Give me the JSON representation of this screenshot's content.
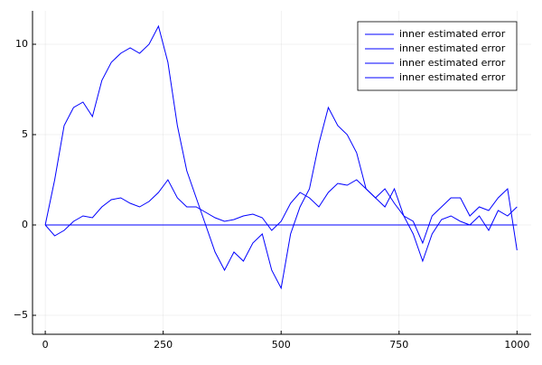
{
  "chart_data": {
    "type": "line",
    "x": [
      0,
      20,
      40,
      60,
      80,
      100,
      120,
      140,
      160,
      180,
      200,
      220,
      240,
      260,
      280,
      300,
      320,
      340,
      360,
      380,
      400,
      420,
      440,
      460,
      480,
      500,
      520,
      540,
      560,
      580,
      600,
      620,
      640,
      660,
      680,
      700,
      720,
      740,
      760,
      780,
      800,
      820,
      840,
      860,
      880,
      900,
      920,
      940,
      960,
      980,
      1000
    ],
    "series": [
      {
        "name": "inner estimated error",
        "color": "#0000ff",
        "values": [
          0,
          2.5,
          5.5,
          6.5,
          6.8,
          6,
          8,
          9,
          9.5,
          9.8,
          9.5,
          10,
          11,
          9,
          5.5,
          3,
          1.5,
          0,
          -1.5,
          -2.5,
          -1.5,
          -2,
          -1,
          -0.5,
          -2.5,
          -3.5,
          -0.5,
          1,
          2,
          4.5,
          6.5,
          5.5,
          5,
          4,
          2,
          1.5,
          1,
          2,
          0.5,
          0.2,
          -1,
          0.5,
          1,
          1.5,
          1.5,
          0.5,
          1,
          0.8,
          1.5,
          2,
          -1.4
        ]
      },
      {
        "name": "inner estimated error",
        "color": "#0000ff",
        "values": [
          0,
          -0.6,
          -0.3,
          0.2,
          0.5,
          0.4,
          1,
          1.4,
          1.5,
          1.2,
          1,
          1.3,
          1.8,
          2.5,
          1.5,
          1,
          1,
          0.7,
          0.4,
          0.2,
          0.3,
          0.5,
          0.6,
          0.4,
          -0.3,
          0.2,
          1.2,
          1.8,
          1.5,
          1,
          1.8,
          2.3,
          2.2,
          2.5,
          2,
          1.5,
          2,
          1.2,
          0.5,
          -0.5,
          -2,
          -0.5,
          0.3,
          0.5,
          0.2,
          0,
          0.5,
          -0.3,
          0.8,
          0.5,
          1
        ]
      },
      {
        "name": "inner estimated error",
        "color": "#0000ff",
        "values": [
          0,
          0,
          0,
          0,
          0,
          0,
          0,
          0,
          0,
          0,
          0,
          0,
          0,
          0,
          0,
          0,
          0,
          0,
          0,
          0,
          0,
          0,
          0,
          0,
          0,
          0,
          0,
          0,
          0,
          0,
          0,
          0,
          0,
          0,
          0,
          0,
          0,
          0,
          0,
          0,
          0,
          0,
          0,
          0,
          0,
          0,
          0,
          0,
          0,
          0,
          0
        ]
      },
      {
        "name": "inner estimated error",
        "color": "#0000ff",
        "values": [
          0,
          0,
          0,
          0,
          0,
          0,
          0,
          0,
          0,
          0,
          0,
          0,
          0,
          0,
          0,
          0,
          0,
          0,
          0,
          0,
          0,
          0,
          0,
          0,
          0,
          0,
          0,
          0,
          0,
          0,
          0,
          0,
          0,
          0,
          0,
          0,
          0,
          0,
          0,
          0,
          0,
          0,
          0,
          0,
          0,
          0,
          0,
          0,
          0,
          0,
          0
        ]
      }
    ],
    "xlim": [
      -27,
      1030
    ],
    "ylim": [
      -6.05,
      11.85
    ],
    "xticks": [
      0,
      250,
      500,
      750,
      1000
    ],
    "yticks": [
      {
        "value": -5,
        "label": "−5"
      },
      0,
      5,
      10
    ],
    "grid": true,
    "legend": "top-right"
  }
}
